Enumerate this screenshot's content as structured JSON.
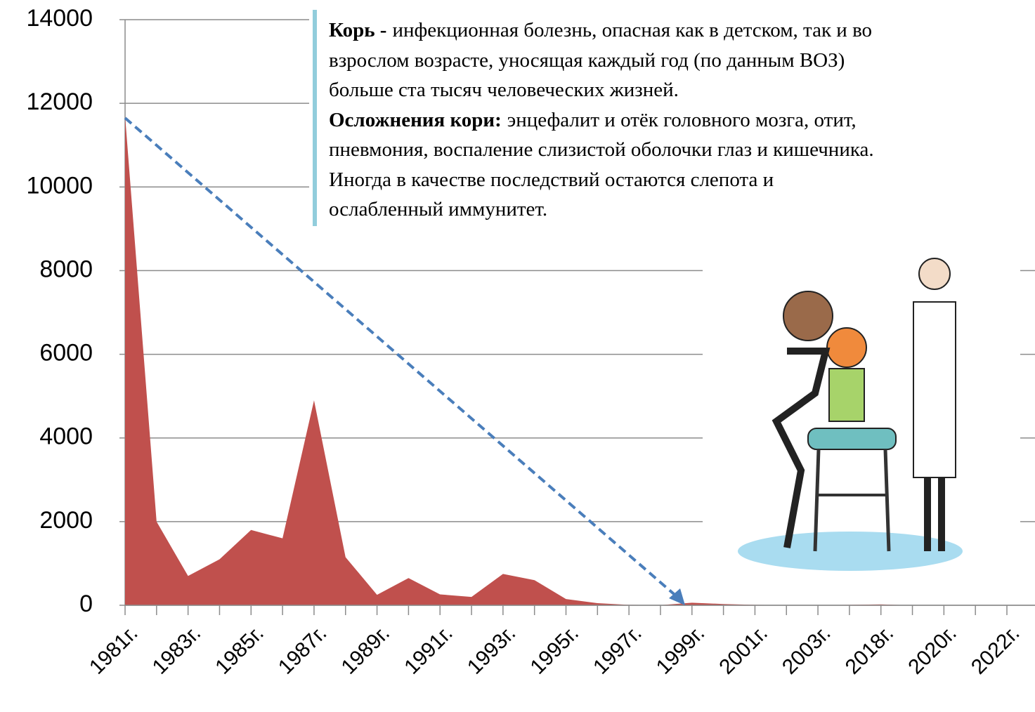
{
  "chart_data": {
    "type": "area",
    "categories": [
      "1981г.",
      null,
      "1983г.",
      null,
      "1985г.",
      null,
      "1987г.",
      null,
      "1989г.",
      null,
      "1991г.",
      null,
      "1993г.",
      null,
      "1995г.",
      null,
      "1997г.",
      null,
      "1999г.",
      null,
      "2001г.",
      null,
      "2003г.",
      null,
      "2018г.",
      null,
      "2020г.",
      null,
      "2022г."
    ],
    "values": [
      11700,
      2000,
      700,
      1100,
      1800,
      1600,
      4900,
      1150,
      250,
      650,
      260,
      200,
      750,
      600,
      150,
      50,
      10,
      5,
      60,
      30,
      10,
      5,
      5,
      10,
      20,
      0,
      null,
      null,
      null
    ],
    "color": "#c0504d",
    "ylim": [
      0,
      14000
    ],
    "yticks": [
      0,
      2000,
      4000,
      6000,
      8000,
      10000,
      12000,
      14000
    ],
    "grid": true
  },
  "annotation": [
    {
      "bold": "Корь -",
      "text": "инфекционная болезнь, опасная как в детском, так и во"
    },
    {
      "text": "взрослом возрасте, уносящая каждый год (по данным ВОЗ)"
    },
    {
      "text": "больше ста тысяч человеческих жизней."
    },
    {
      "bold": "Осложнения кори:",
      "text": "энцефалит и отёк головного мозга, отит,"
    },
    {
      "text": "пневмония, воспаление слизистой оболочки глаз и кишечника."
    },
    {
      "text": "Иногда в качестве последствий остаются слепота и"
    },
    {
      "text": "ослабленный иммунитет."
    }
  ]
}
